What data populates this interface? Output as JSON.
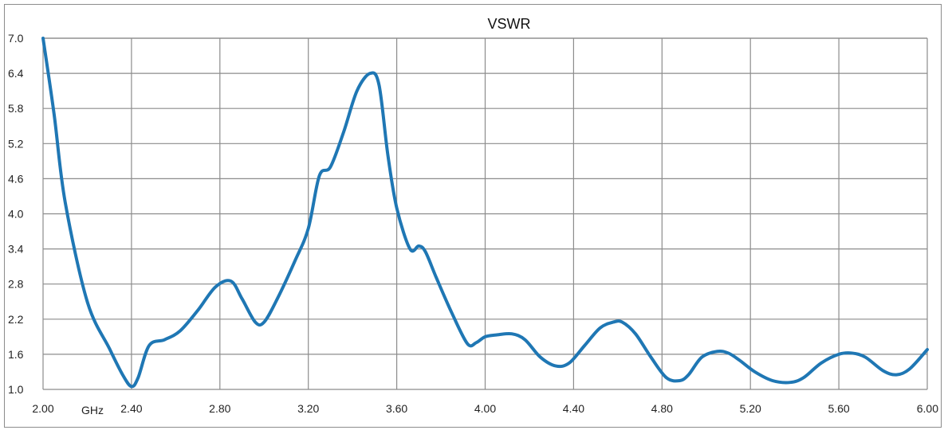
{
  "chart_data": {
    "type": "line",
    "title": "VSWR",
    "x_unit_label": "GHz",
    "xlim": [
      2.0,
      6.0
    ],
    "ylim": [
      1.0,
      7.0
    ],
    "x_ticks": [
      "2.00",
      "2.40",
      "2.80",
      "3.20",
      "3.60",
      "4.00",
      "4.40",
      "4.80",
      "5.20",
      "5.60",
      "6.00"
    ],
    "x_tick_values": [
      2.0,
      2.4,
      2.8,
      3.2,
      3.6,
      4.0,
      4.4,
      4.8,
      5.2,
      5.6,
      6.0
    ],
    "y_ticks": [
      "1.0",
      "1.6",
      "2.2",
      "2.8",
      "3.4",
      "4.0",
      "4.6",
      "5.2",
      "5.8",
      "6.4",
      "7.0"
    ],
    "y_tick_values": [
      1.0,
      1.6,
      2.2,
      2.8,
      3.4,
      4.0,
      4.6,
      5.2,
      5.8,
      6.4,
      7.0
    ],
    "grid": true,
    "legend": "none",
    "series": [
      {
        "color": "#1f77b4",
        "x": [
          2.0,
          2.05,
          2.1,
          2.2,
          2.3,
          2.36,
          2.4,
          2.43,
          2.48,
          2.55,
          2.62,
          2.7,
          2.78,
          2.85,
          2.9,
          2.96,
          3.0,
          3.06,
          3.14,
          3.2,
          3.25,
          3.3,
          3.36,
          3.42,
          3.48,
          3.52,
          3.56,
          3.6,
          3.66,
          3.7,
          3.73,
          3.78,
          3.85,
          3.92,
          3.96,
          4.0,
          4.05,
          4.12,
          4.18,
          4.25,
          4.32,
          4.38,
          4.45,
          4.52,
          4.58,
          4.62,
          4.68,
          4.75,
          4.82,
          4.88,
          4.92,
          4.98,
          5.05,
          5.1,
          5.15,
          5.22,
          5.3,
          5.38,
          5.44,
          5.52,
          5.6,
          5.66,
          5.72,
          5.8,
          5.86,
          5.92,
          6.0
        ],
        "y": [
          7.0,
          5.7,
          4.2,
          2.5,
          1.7,
          1.25,
          1.05,
          1.2,
          1.75,
          1.85,
          2.0,
          2.35,
          2.75,
          2.85,
          2.55,
          2.15,
          2.15,
          2.55,
          3.2,
          3.75,
          4.65,
          4.8,
          5.4,
          6.1,
          6.4,
          6.2,
          5.0,
          4.1,
          3.4,
          3.45,
          3.35,
          2.9,
          2.3,
          1.78,
          1.8,
          1.9,
          1.93,
          1.95,
          1.85,
          1.55,
          1.4,
          1.45,
          1.75,
          2.05,
          2.15,
          2.15,
          1.95,
          1.55,
          1.2,
          1.15,
          1.25,
          1.55,
          1.65,
          1.62,
          1.5,
          1.3,
          1.15,
          1.12,
          1.2,
          1.45,
          1.6,
          1.62,
          1.55,
          1.32,
          1.25,
          1.35,
          1.68
        ]
      }
    ]
  }
}
